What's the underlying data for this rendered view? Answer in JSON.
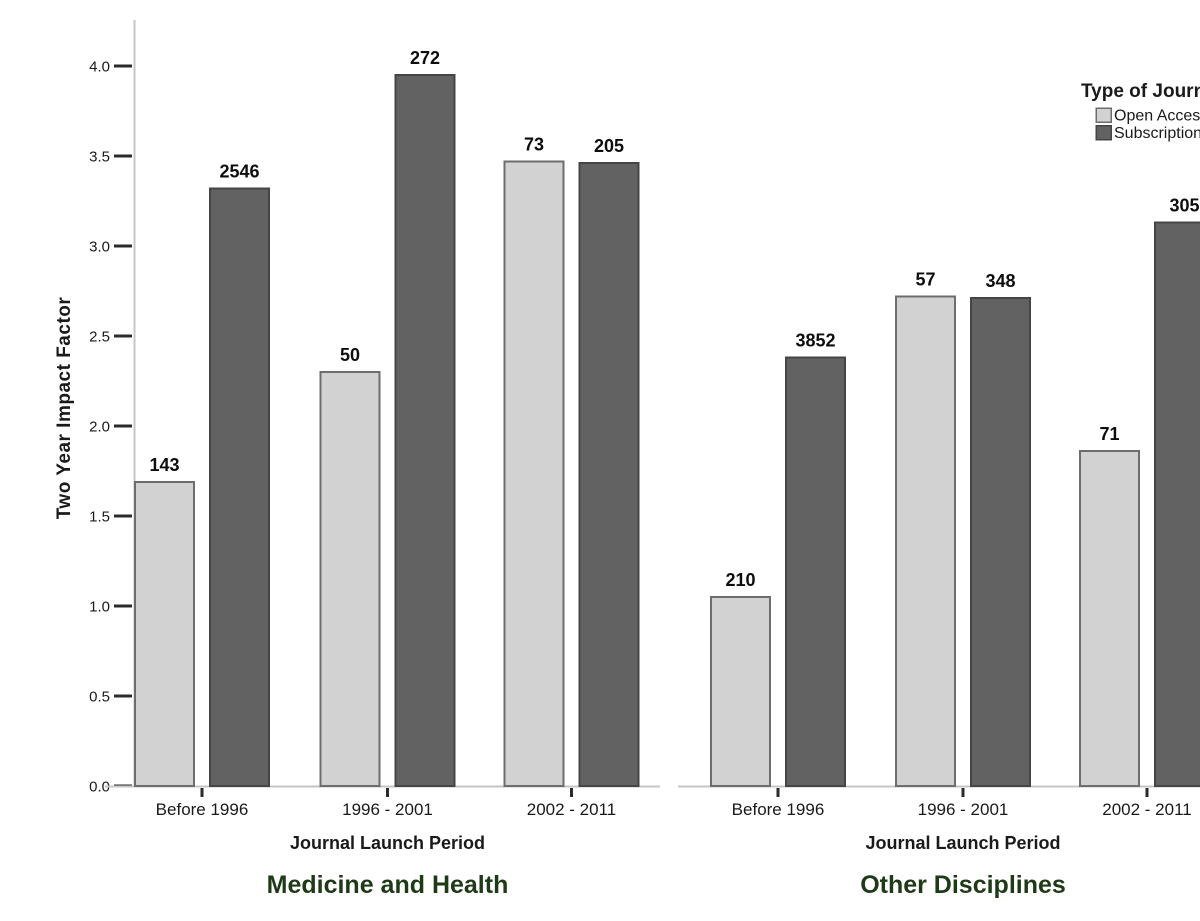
{
  "chart_data": {
    "type": "bar",
    "variant": "grouped-bars-two-panels",
    "title": "",
    "ylabel": "Two Year Impact Factor",
    "xlabel": "Journal Launch Period",
    "ylim": [
      0,
      4.0
    ],
    "ytick_labels": [
      "0.0",
      "0.5",
      "1.0",
      "1.5",
      "2.0",
      "2.5",
      "3.0",
      "3.5",
      "4.0"
    ],
    "grid": false,
    "background": "#ffffff",
    "legend": {
      "title": "Type of Journal",
      "position": "top-right",
      "entries": [
        "Open Access",
        "Subscription"
      ]
    },
    "categories": [
      "Before 1996",
      "1996 - 2001",
      "2002 - 2011"
    ],
    "series_styles": [
      {
        "name": "Open Access",
        "fill": "#d2d2d2",
        "stroke": "#6d6d6d"
      },
      {
        "name": "Subscription",
        "fill": "#626262",
        "stroke": "#454545"
      }
    ],
    "panels": [
      {
        "title": "Medicine and Health",
        "xlabel": "Journal Launch Period",
        "series": [
          {
            "name": "Open Access",
            "values": [
              1.69,
              2.3,
              3.47
            ],
            "bar_labels": [
              "143",
              "50",
              "73"
            ]
          },
          {
            "name": "Subscription",
            "values": [
              3.32,
              3.95,
              3.46
            ],
            "bar_labels": [
              "2546",
              "272",
              "205"
            ]
          }
        ]
      },
      {
        "title": "Other Disciplines",
        "xlabel": "Journal Launch Period",
        "series": [
          {
            "name": "Open Access",
            "values": [
              1.05,
              2.72,
              1.86
            ],
            "bar_labels": [
              "210",
              "57",
              "71"
            ]
          },
          {
            "name": "Subscription",
            "values": [
              2.38,
              2.71,
              3.13
            ],
            "bar_labels": [
              "3852",
              "348",
              "305"
            ]
          }
        ]
      }
    ],
    "colors": {
      "axis_line": "#c6c6c6",
      "tick": "#2b2b2b",
      "text": "#1a1a1a",
      "bar_label_text": "#0d0d0d",
      "panel_title": "#1e3a17"
    }
  }
}
